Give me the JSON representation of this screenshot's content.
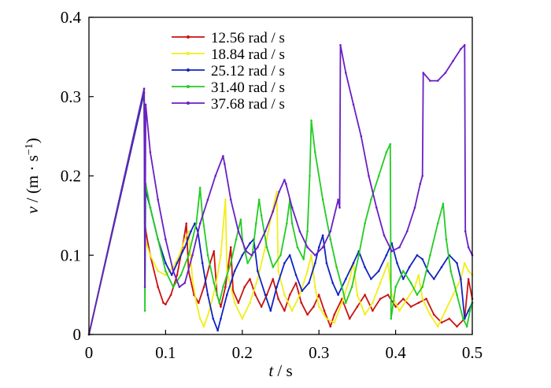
{
  "chart_data": {
    "type": "line",
    "title": "",
    "xlabel": {
      "var": "t",
      "sep": " / ",
      "unit": "s"
    },
    "ylabel": {
      "var": "v",
      "sep": " / ",
      "unit": "(m · s",
      "exp": "−1",
      "close": ")"
    },
    "xlim": [
      0,
      0.5
    ],
    "ylim": [
      0,
      0.4
    ],
    "xticks": [
      0,
      0.1,
      0.2,
      0.3,
      0.4,
      0.5
    ],
    "xtick_labels": [
      "0",
      "0.1",
      "0.2",
      "0.3",
      "0.4",
      "0.5"
    ],
    "yticks": [
      0,
      0.1,
      0.2,
      0.3,
      0.4
    ],
    "ytick_labels": [
      "0",
      "0.1",
      "0.2",
      "0.3",
      "0.4"
    ],
    "grid": false,
    "legend": "top-center",
    "series": [
      {
        "name": "12.56 rad / s",
        "color": "#cc1111",
        "points": [
          [
            0,
            0.0
          ],
          [
            0.072,
            0.305
          ],
          [
            0.073,
            0.14
          ],
          [
            0.075,
            0.125
          ],
          [
            0.08,
            0.1
          ],
          [
            0.09,
            0.06
          ],
          [
            0.097,
            0.04
          ],
          [
            0.1,
            0.038
          ],
          [
            0.107,
            0.05
          ],
          [
            0.115,
            0.075
          ],
          [
            0.122,
            0.11
          ],
          [
            0.127,
            0.14
          ],
          [
            0.13,
            0.08
          ],
          [
            0.137,
            0.05
          ],
          [
            0.143,
            0.04
          ],
          [
            0.15,
            0.06
          ],
          [
            0.158,
            0.09
          ],
          [
            0.163,
            0.105
          ],
          [
            0.167,
            0.05
          ],
          [
            0.172,
            0.035
          ],
          [
            0.178,
            0.06
          ],
          [
            0.185,
            0.11
          ],
          [
            0.188,
            0.055
          ],
          [
            0.195,
            0.04
          ],
          [
            0.203,
            0.06
          ],
          [
            0.21,
            0.07
          ],
          [
            0.217,
            0.05
          ],
          [
            0.225,
            0.035
          ],
          [
            0.232,
            0.05
          ],
          [
            0.24,
            0.07
          ],
          [
            0.247,
            0.045
          ],
          [
            0.255,
            0.03
          ],
          [
            0.262,
            0.05
          ],
          [
            0.27,
            0.065
          ],
          [
            0.277,
            0.04
          ],
          [
            0.285,
            0.025
          ],
          [
            0.293,
            0.035
          ],
          [
            0.3,
            0.05
          ],
          [
            0.307,
            0.03
          ],
          [
            0.315,
            0.01
          ],
          [
            0.32,
            0.025
          ],
          [
            0.33,
            0.045
          ],
          [
            0.34,
            0.02
          ],
          [
            0.35,
            0.035
          ],
          [
            0.36,
            0.05
          ],
          [
            0.37,
            0.03
          ],
          [
            0.38,
            0.045
          ],
          [
            0.39,
            0.05
          ],
          [
            0.4,
            0.035
          ],
          [
            0.41,
            0.045
          ],
          [
            0.42,
            0.035
          ],
          [
            0.43,
            0.04
          ],
          [
            0.44,
            0.045
          ],
          [
            0.45,
            0.025
          ],
          [
            0.46,
            0.015
          ],
          [
            0.47,
            0.02
          ],
          [
            0.48,
            0.01
          ],
          [
            0.49,
            0.02
          ],
          [
            0.495,
            0.07
          ],
          [
            0.5,
            0.045
          ]
        ]
      },
      {
        "name": "18.84 rad / s",
        "color": "#f2ee1a",
        "points": [
          [
            0,
            0.0
          ],
          [
            0.072,
            0.305
          ],
          [
            0.073,
            0.12
          ],
          [
            0.08,
            0.1
          ],
          [
            0.09,
            0.08
          ],
          [
            0.1,
            0.075
          ],
          [
            0.11,
            0.085
          ],
          [
            0.118,
            0.1
          ],
          [
            0.125,
            0.12
          ],
          [
            0.13,
            0.13
          ],
          [
            0.135,
            0.07
          ],
          [
            0.14,
            0.04
          ],
          [
            0.145,
            0.02
          ],
          [
            0.15,
            0.01
          ],
          [
            0.157,
            0.03
          ],
          [
            0.165,
            0.06
          ],
          [
            0.172,
            0.1
          ],
          [
            0.178,
            0.17
          ],
          [
            0.18,
            0.08
          ],
          [
            0.19,
            0.04
          ],
          [
            0.2,
            0.02
          ],
          [
            0.21,
            0.04
          ],
          [
            0.22,
            0.07
          ],
          [
            0.23,
            0.11
          ],
          [
            0.238,
            0.15
          ],
          [
            0.245,
            0.18
          ],
          [
            0.247,
            0.08
          ],
          [
            0.255,
            0.05
          ],
          [
            0.265,
            0.03
          ],
          [
            0.275,
            0.05
          ],
          [
            0.285,
            0.08
          ],
          [
            0.29,
            0.1
          ],
          [
            0.295,
            0.06
          ],
          [
            0.3,
            0.035
          ],
          [
            0.31,
            0.02
          ],
          [
            0.32,
            0.015
          ],
          [
            0.33,
            0.04
          ],
          [
            0.34,
            0.07
          ],
          [
            0.345,
            0.09
          ],
          [
            0.35,
            0.05
          ],
          [
            0.36,
            0.025
          ],
          [
            0.37,
            0.04
          ],
          [
            0.38,
            0.065
          ],
          [
            0.39,
            0.09
          ],
          [
            0.395,
            0.05
          ],
          [
            0.405,
            0.03
          ],
          [
            0.415,
            0.045
          ],
          [
            0.425,
            0.06
          ],
          [
            0.43,
            0.075
          ],
          [
            0.435,
            0.045
          ],
          [
            0.445,
            0.025
          ],
          [
            0.455,
            0.01
          ],
          [
            0.465,
            0.03
          ],
          [
            0.475,
            0.05
          ],
          [
            0.485,
            0.07
          ],
          [
            0.49,
            0.09
          ],
          [
            0.495,
            0.08
          ],
          [
            0.5,
            0.075
          ]
        ]
      },
      {
        "name": "25.12 rad / s",
        "color": "#1024c0",
        "points": [
          [
            0,
            0.0
          ],
          [
            0.072,
            0.305
          ],
          [
            0.073,
            0.185
          ],
          [
            0.08,
            0.16
          ],
          [
            0.09,
            0.12
          ],
          [
            0.1,
            0.09
          ],
          [
            0.108,
            0.075
          ],
          [
            0.115,
            0.09
          ],
          [
            0.125,
            0.11
          ],
          [
            0.133,
            0.13
          ],
          [
            0.138,
            0.14
          ],
          [
            0.142,
            0.13
          ],
          [
            0.148,
            0.09
          ],
          [
            0.155,
            0.05
          ],
          [
            0.162,
            0.02
          ],
          [
            0.168,
            0.005
          ],
          [
            0.172,
            0.02
          ],
          [
            0.18,
            0.05
          ],
          [
            0.19,
            0.08
          ],
          [
            0.2,
            0.1
          ],
          [
            0.21,
            0.115
          ],
          [
            0.215,
            0.12
          ],
          [
            0.22,
            0.08
          ],
          [
            0.23,
            0.05
          ],
          [
            0.237,
            0.03
          ],
          [
            0.245,
            0.06
          ],
          [
            0.255,
            0.09
          ],
          [
            0.262,
            0.1
          ],
          [
            0.27,
            0.075
          ],
          [
            0.278,
            0.055
          ],
          [
            0.287,
            0.065
          ],
          [
            0.295,
            0.09
          ],
          [
            0.3,
            0.11
          ],
          [
            0.305,
            0.125
          ],
          [
            0.31,
            0.09
          ],
          [
            0.318,
            0.065
          ],
          [
            0.325,
            0.05
          ],
          [
            0.335,
            0.07
          ],
          [
            0.345,
            0.09
          ],
          [
            0.352,
            0.105
          ],
          [
            0.36,
            0.085
          ],
          [
            0.368,
            0.07
          ],
          [
            0.378,
            0.08
          ],
          [
            0.388,
            0.1
          ],
          [
            0.395,
            0.115
          ],
          [
            0.402,
            0.09
          ],
          [
            0.41,
            0.07
          ],
          [
            0.418,
            0.085
          ],
          [
            0.428,
            0.1
          ],
          [
            0.435,
            0.095
          ],
          [
            0.442,
            0.08
          ],
          [
            0.45,
            0.07
          ],
          [
            0.46,
            0.085
          ],
          [
            0.47,
            0.1
          ],
          [
            0.48,
            0.09
          ],
          [
            0.485,
            0.07
          ],
          [
            0.49,
            0.02
          ],
          [
            0.495,
            0.03
          ],
          [
            0.5,
            0.04
          ]
        ]
      },
      {
        "name": "31.40 rad / s",
        "color": "#22cc22",
        "points": [
          [
            0,
            0.0
          ],
          [
            0.072,
            0.31
          ],
          [
            0.073,
            0.03
          ],
          [
            0.074,
            0.19
          ],
          [
            0.08,
            0.16
          ],
          [
            0.09,
            0.12
          ],
          [
            0.1,
            0.08
          ],
          [
            0.11,
            0.06
          ],
          [
            0.12,
            0.075
          ],
          [
            0.13,
            0.1
          ],
          [
            0.14,
            0.14
          ],
          [
            0.145,
            0.185
          ],
          [
            0.148,
            0.15
          ],
          [
            0.155,
            0.1
          ],
          [
            0.163,
            0.065
          ],
          [
            0.17,
            0.04
          ],
          [
            0.175,
            0.06
          ],
          [
            0.185,
            0.09
          ],
          [
            0.192,
            0.12
          ],
          [
            0.198,
            0.145
          ],
          [
            0.2,
            0.12
          ],
          [
            0.207,
            0.09
          ],
          [
            0.213,
            0.1
          ],
          [
            0.218,
            0.14
          ],
          [
            0.222,
            0.17
          ],
          [
            0.225,
            0.15
          ],
          [
            0.232,
            0.11
          ],
          [
            0.24,
            0.085
          ],
          [
            0.25,
            0.1
          ],
          [
            0.258,
            0.14
          ],
          [
            0.262,
            0.17
          ],
          [
            0.265,
            0.14
          ],
          [
            0.272,
            0.11
          ],
          [
            0.28,
            0.095
          ],
          [
            0.285,
            0.13
          ],
          [
            0.288,
            0.2
          ],
          [
            0.29,
            0.27
          ],
          [
            0.295,
            0.23
          ],
          [
            0.305,
            0.17
          ],
          [
            0.315,
            0.12
          ],
          [
            0.323,
            0.085
          ],
          [
            0.33,
            0.06
          ],
          [
            0.335,
            0.04
          ],
          [
            0.343,
            0.06
          ],
          [
            0.352,
            0.1
          ],
          [
            0.36,
            0.14
          ],
          [
            0.368,
            0.17
          ],
          [
            0.378,
            0.2
          ],
          [
            0.388,
            0.23
          ],
          [
            0.393,
            0.24
          ],
          [
            0.394,
            0.02
          ],
          [
            0.4,
            0.06
          ],
          [
            0.41,
            0.08
          ],
          [
            0.42,
            0.065
          ],
          [
            0.428,
            0.05
          ],
          [
            0.435,
            0.06
          ],
          [
            0.445,
            0.1
          ],
          [
            0.455,
            0.14
          ],
          [
            0.462,
            0.165
          ],
          [
            0.466,
            0.12
          ],
          [
            0.472,
            0.08
          ],
          [
            0.48,
            0.05
          ],
          [
            0.488,
            0.02
          ],
          [
            0.493,
            0.01
          ],
          [
            0.497,
            0.03
          ],
          [
            0.5,
            0.04
          ]
        ]
      },
      {
        "name": "37.68 rad / s",
        "color": "#6a1fc4",
        "points": [
          [
            0,
            0.0
          ],
          [
            0.072,
            0.31
          ],
          [
            0.073,
            0.06
          ],
          [
            0.074,
            0.29
          ],
          [
            0.08,
            0.23
          ],
          [
            0.09,
            0.17
          ],
          [
            0.1,
            0.12
          ],
          [
            0.11,
            0.08
          ],
          [
            0.118,
            0.06
          ],
          [
            0.125,
            0.065
          ],
          [
            0.135,
            0.1
          ],
          [
            0.145,
            0.14
          ],
          [
            0.155,
            0.17
          ],
          [
            0.165,
            0.2
          ],
          [
            0.175,
            0.225
          ],
          [
            0.177,
            0.215
          ],
          [
            0.185,
            0.17
          ],
          [
            0.195,
            0.13
          ],
          [
            0.205,
            0.105
          ],
          [
            0.212,
            0.1
          ],
          [
            0.22,
            0.11
          ],
          [
            0.23,
            0.13
          ],
          [
            0.24,
            0.155
          ],
          [
            0.248,
            0.18
          ],
          [
            0.255,
            0.195
          ],
          [
            0.257,
            0.19
          ],
          [
            0.265,
            0.16
          ],
          [
            0.275,
            0.13
          ],
          [
            0.285,
            0.11
          ],
          [
            0.295,
            0.1
          ],
          [
            0.305,
            0.11
          ],
          [
            0.315,
            0.13
          ],
          [
            0.325,
            0.17
          ],
          [
            0.327,
            0.16
          ],
          [
            0.328,
            0.365
          ],
          [
            0.335,
            0.33
          ],
          [
            0.345,
            0.29
          ],
          [
            0.355,
            0.25
          ],
          [
            0.365,
            0.2
          ],
          [
            0.375,
            0.16
          ],
          [
            0.385,
            0.125
          ],
          [
            0.395,
            0.105
          ],
          [
            0.405,
            0.11
          ],
          [
            0.415,
            0.13
          ],
          [
            0.425,
            0.16
          ],
          [
            0.432,
            0.19
          ],
          [
            0.435,
            0.2
          ],
          [
            0.436,
            0.33
          ],
          [
            0.445,
            0.32
          ],
          [
            0.455,
            0.32
          ],
          [
            0.465,
            0.33
          ],
          [
            0.475,
            0.345
          ],
          [
            0.485,
            0.36
          ],
          [
            0.49,
            0.365
          ],
          [
            0.491,
            0.13
          ],
          [
            0.495,
            0.11
          ],
          [
            0.5,
            0.1
          ]
        ]
      }
    ]
  }
}
